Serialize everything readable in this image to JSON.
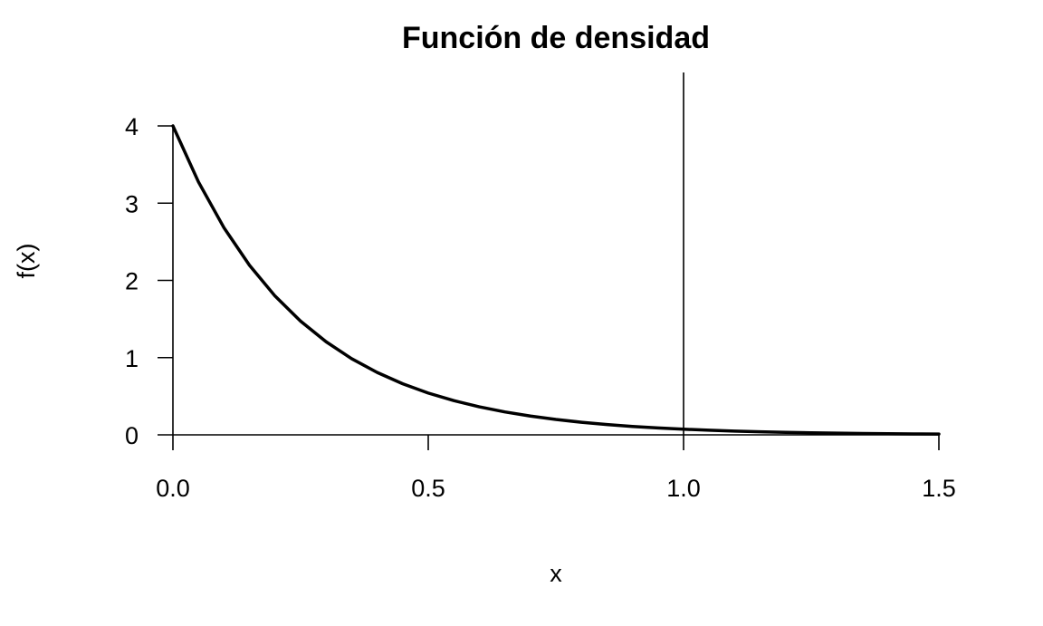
{
  "chart_data": {
    "type": "line",
    "title": "Función de densidad",
    "xlabel": "x",
    "ylabel": "f(x)",
    "xlim": [
      0,
      1.5
    ],
    "ylim": [
      0,
      4
    ],
    "x_ticks": [
      0,
      0.5,
      1,
      1.5
    ],
    "x_tick_labels": [
      "0.0",
      "0.5",
      "1.0",
      "1.5"
    ],
    "y_ticks": [
      0,
      1,
      2,
      3,
      4
    ],
    "y_tick_labels": [
      "0",
      "1",
      "2",
      "3",
      "4"
    ],
    "grid": false,
    "reference_lines": [
      {
        "orientation": "vertical",
        "x": 1.0
      }
    ],
    "series": [
      {
        "x": [
          0.0,
          0.05,
          0.1,
          0.15,
          0.2,
          0.25,
          0.3,
          0.35,
          0.4,
          0.45,
          0.5,
          0.55,
          0.6,
          0.65,
          0.7,
          0.75,
          0.8,
          0.85,
          0.9,
          0.95,
          1.0,
          1.05,
          1.1,
          1.15,
          1.2,
          1.25,
          1.3,
          1.35,
          1.4,
          1.45,
          1.5
        ],
        "values": [
          4.0,
          3.275,
          2.681,
          2.195,
          1.797,
          1.472,
          1.205,
          0.986,
          0.808,
          0.661,
          0.541,
          0.443,
          0.363,
          0.297,
          0.243,
          0.199,
          0.163,
          0.134,
          0.109,
          0.09,
          0.073,
          0.06,
          0.049,
          0.04,
          0.033,
          0.027,
          0.022,
          0.018,
          0.015,
          0.012,
          0.01
        ]
      }
    ]
  },
  "colors": {
    "line": "#000000",
    "axis": "#000000",
    "background": "#ffffff"
  }
}
